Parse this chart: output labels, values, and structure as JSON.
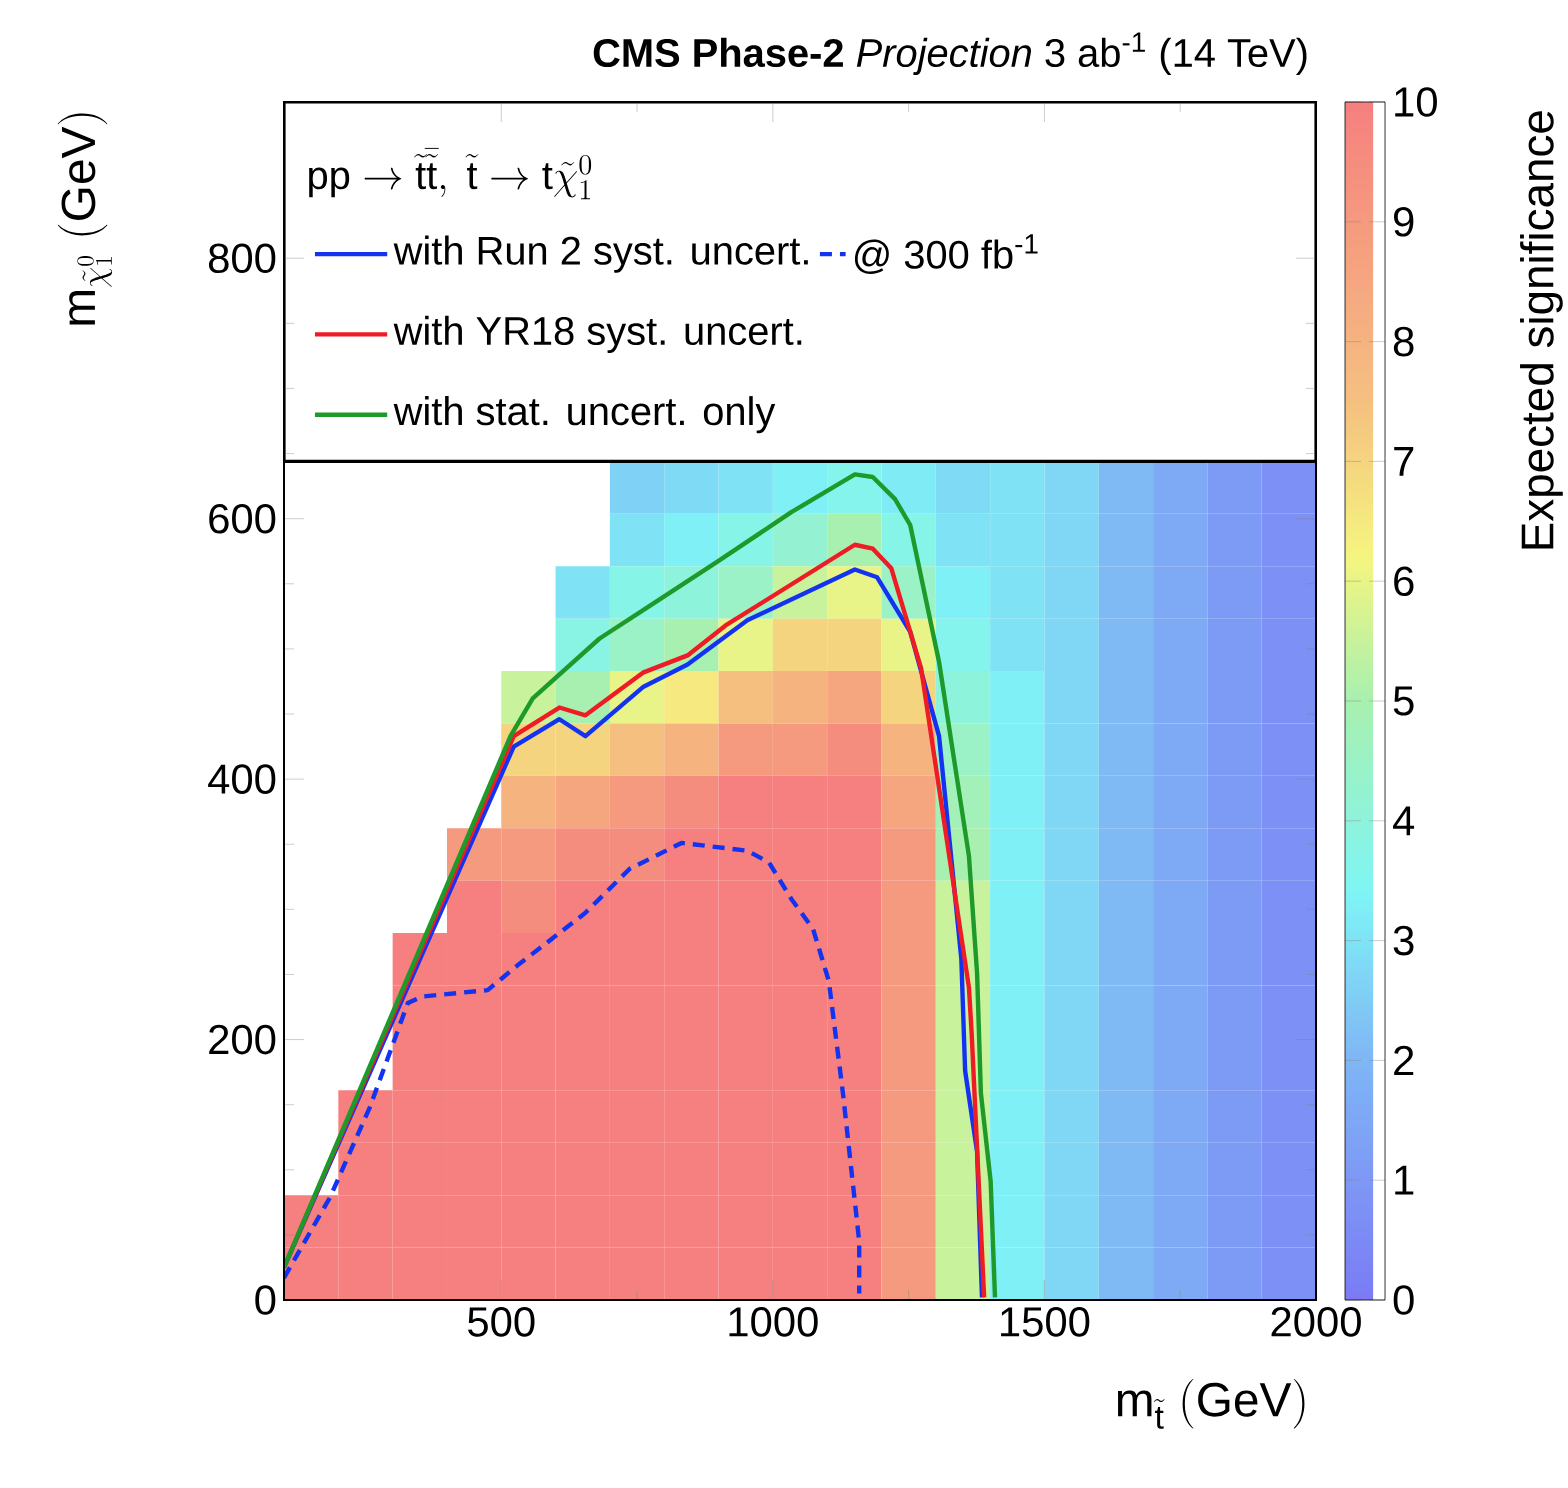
{
  "chart_data": [
    {
      "type": "line",
      "title": "**CMS Phase-2** *Projection* 3 ab$^{-1}$ (14 TeV)",
      "xlabel": "\\mathrm{m}_{\\tilde{\\mathrm{t}}}\\ \\mathrm{(GeV)}",
      "ylabel": "\\mathrm{m}_{\\tilde{\\chi}^{0}_{1}}\\ \\mathrm{(GeV)}",
      "legend_title": "\\mathrm{pp} \\rightarrow \\tilde{\\mathrm{t}}\\bar{\\tilde{\\mathrm{t}}},\\ \\tilde{\\mathrm{t}} \\rightarrow \\mathrm{t}\\tilde{\\chi}^{0}_{1}",
      "legend": "top",
      "xlim": [
        100,
        2000
      ],
      "ylim": [
        0,
        920
      ],
      "xticks": [
        500,
        1000,
        1500,
        2000
      ],
      "yticks": [
        0,
        200,
        400,
        600,
        800
      ],
      "series": [
        {
          "name": "with Run 2 syst. uncert.",
          "type": "line",
          "color": "#1433f0",
          "line_style": "solid",
          "x": [
            100,
            523,
            607,
            655,
            762,
            843,
            953,
            1151,
            1192,
            1253,
            1306,
            1347,
            1354,
            1376,
            1385
          ],
          "values": [
            25,
            425,
            446,
            433,
            471,
            488,
            522,
            561,
            555,
            513,
            433,
            262,
            176,
            114,
            2
          ]
        },
        {
          "name": "@ 300 fb$^{-1}$",
          "type": "line",
          "color": "#1433f0",
          "line_style": "dashed",
          "x": [
            100,
            185,
            258,
            328,
            354,
            475,
            530,
            654,
            736,
            832,
            953,
            993,
            1034,
            1074,
            1103,
            1129,
            1159,
            1159
          ],
          "values": [
            17,
            79,
            148,
            228,
            233,
            238,
            257,
            297,
            331,
            351,
            345,
            336,
            308,
            285,
            245,
            159,
            45,
            5
          ]
        },
        {
          "name": "with YR18 syst. uncert.",
          "type": "line",
          "color": "#ee1c25",
          "line_style": "solid",
          "x": [
            100,
            523,
            607,
            655,
            762,
            843,
            913,
            1151,
            1184,
            1218,
            1273,
            1361,
            1366,
            1389
          ],
          "values": [
            25,
            433,
            455,
            449,
            482,
            495,
            518,
            580,
            577,
            562,
            485,
            240,
            205,
            2
          ]
        },
        {
          "name": "with stat. uncert. only",
          "type": "line",
          "color": "#1e9a2a",
          "line_style": "solid",
          "x": [
            100,
            517,
            558,
            681,
            762,
            898,
            1034,
            1151,
            1184,
            1225,
            1253,
            1306,
            1361,
            1376,
            1383,
            1401,
            1409
          ],
          "values": [
            25,
            433,
            462,
            508,
            530,
            567,
            605,
            634,
            632,
            615,
            595,
            490,
            341,
            251,
            159,
            91,
            2
          ]
        }
      ]
    },
    {
      "type": "heatmap",
      "clabel": "Expected significance",
      "clim": [
        0,
        10
      ],
      "cticks": [
        0,
        1,
        2,
        3,
        4,
        5,
        6,
        7,
        8,
        9,
        10
      ],
      "categories": [
        null,
        null,
        null,
        null,
        null,
        null,
        null,
        null,
        null,
        null,
        null,
        null,
        null,
        null,
        null,
        null,
        null,
        null,
        null
      ],
      "y_categories": [
        null,
        null,
        null,
        null,
        null,
        null,
        null,
        null,
        null,
        null,
        null,
        null,
        null,
        null,
        null,
        null
      ],
      "cells": [
        [
          null,
          null,
          null,
          null,
          null,
          null,
          2.6,
          2.8,
          3,
          3.3,
          3.6,
          3.2,
          2.8,
          3,
          2.7,
          2.1,
          1.6,
          1.1,
          0.7
        ],
        [
          null,
          null,
          null,
          null,
          null,
          null,
          3,
          3.3,
          3.7,
          4.2,
          5,
          3.7,
          3,
          3,
          2.7,
          2.1,
          1.6,
          1.1,
          0.7
        ],
        [
          null,
          null,
          null,
          null,
          null,
          3,
          3.7,
          4,
          4.5,
          5.5,
          6,
          4.5,
          3.3,
          3,
          2.7,
          2.1,
          1.6,
          1.1,
          0.7
        ],
        [
          null,
          null,
          null,
          null,
          null,
          3.8,
          4.5,
          5,
          6,
          7,
          7,
          6,
          3.6,
          3,
          2.7,
          2.1,
          1.6,
          1.1,
          0.7
        ],
        [
          null,
          null,
          null,
          null,
          5.5,
          5,
          6,
          6.5,
          7.5,
          8,
          8.5,
          7,
          4,
          3.3,
          2.7,
          2.1,
          1.6,
          1.1,
          0.7
        ],
        [
          null,
          null,
          null,
          null,
          7,
          7,
          7.5,
          8,
          9,
          9,
          9.5,
          8,
          4.5,
          3.3,
          2.7,
          2.1,
          1.6,
          1.1,
          0.7
        ],
        [
          null,
          null,
          null,
          null,
          8,
          8.5,
          9,
          9.5,
          10,
          10,
          10,
          8.5,
          4.8,
          3.3,
          2.7,
          2.1,
          1.6,
          1.1,
          0.7
        ],
        [
          null,
          null,
          null,
          9,
          9,
          9.5,
          9.5,
          10,
          10,
          10,
          10,
          9,
          5,
          3.3,
          2.7,
          2.1,
          1.6,
          1.1,
          0.7
        ],
        [
          null,
          null,
          null,
          10,
          9.5,
          10,
          10,
          10,
          10,
          10,
          10,
          9,
          5.5,
          3.3,
          2.7,
          2.1,
          1.6,
          1.1,
          0.7
        ],
        [
          null,
          null,
          10,
          10,
          10,
          10,
          10,
          10,
          10,
          10,
          10,
          9,
          5.5,
          3.3,
          2.7,
          2.1,
          1.6,
          1.1,
          0.7
        ],
        [
          null,
          null,
          10,
          10,
          10,
          10,
          10,
          10,
          10,
          10,
          10,
          9,
          5.5,
          3.3,
          2.7,
          2.1,
          1.6,
          1.1,
          0.7
        ],
        [
          null,
          null,
          10,
          10,
          10,
          10,
          10,
          10,
          10,
          10,
          10,
          9,
          5.5,
          3.3,
          2.7,
          2.1,
          1.6,
          1.1,
          0.7
        ],
        [
          null,
          10,
          10,
          10,
          10,
          10,
          10,
          10,
          10,
          10,
          10,
          9,
          5.5,
          3.3,
          2.7,
          2.1,
          1.6,
          1.1,
          0.7
        ],
        [
          null,
          10,
          10,
          10,
          10,
          10,
          10,
          10,
          10,
          10,
          10,
          9,
          5.5,
          3.3,
          2.7,
          2.1,
          1.6,
          1.1,
          0.7
        ],
        [
          10,
          10,
          10,
          10,
          10,
          10,
          10,
          10,
          10,
          10,
          10,
          9,
          5.5,
          3.3,
          2.7,
          2.1,
          1.6,
          1.1,
          0.7
        ],
        [
          10,
          10,
          10,
          10,
          10,
          10,
          10,
          10,
          10,
          10,
          10,
          9,
          5.5,
          3.3,
          2.7,
          2.1,
          1.6,
          1.1,
          0.7
        ]
      ]
    }
  ]
}
